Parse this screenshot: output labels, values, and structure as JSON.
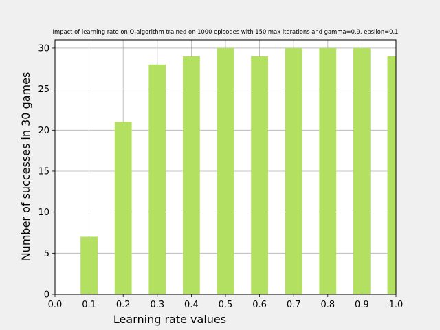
{
  "chart_data": {
    "type": "bar",
    "title": "Impact of learning rate on Q-algorithm trained on 1000 episodes with 150 max iterations and gamma=0.9, epsilon=0.1",
    "xlabel": "Learning rate values",
    "ylabel": "Number of successes in 30 games",
    "x": [
      0.1,
      0.2,
      0.3,
      0.4,
      0.5,
      0.6,
      0.7,
      0.8,
      0.9,
      1.0
    ],
    "values": [
      7,
      21,
      28,
      29,
      30,
      29,
      30,
      30,
      30,
      29
    ],
    "bar_width": 0.05,
    "xlim": [
      0.0,
      1.0
    ],
    "ylim": [
      0,
      31
    ],
    "x_ticks": [
      0.0,
      0.1,
      0.2,
      0.3,
      0.4,
      0.5,
      0.6,
      0.7,
      0.8,
      0.9,
      1.0
    ],
    "x_tick_labels": [
      "0.0",
      "0.1",
      "0.2",
      "0.3",
      "0.4",
      "0.5",
      "0.6",
      "0.7",
      "0.8",
      "0.9",
      "1.0"
    ],
    "y_ticks": [
      0,
      5,
      10,
      15,
      20,
      25,
      30
    ],
    "y_tick_labels": [
      "0",
      "5",
      "10",
      "15",
      "20",
      "25",
      "30"
    ],
    "grid": true,
    "legend": "none",
    "colors": {
      "bar": "#b3e061",
      "grid": "#b0b0b0",
      "plot_background": "#ffffff",
      "figure_background": "#f0f0f0"
    }
  }
}
